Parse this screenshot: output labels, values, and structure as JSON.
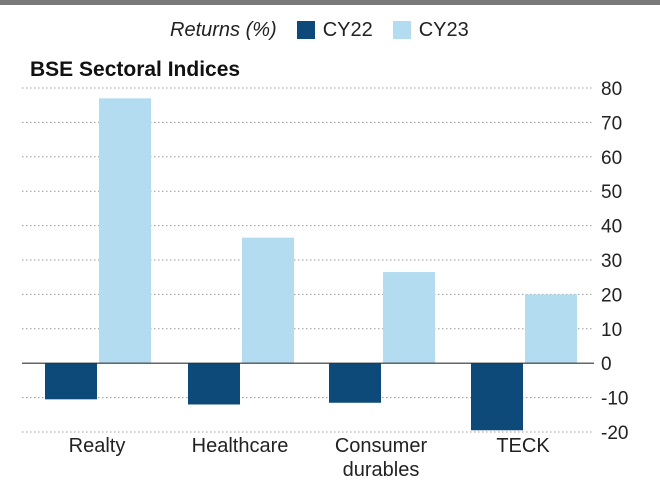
{
  "chart_data": {
    "type": "bar",
    "title": "BSE Sectoral Indices",
    "legend_title": "Returns (%)",
    "legend_placement": "top",
    "categories": [
      {
        "lines": [
          "Realty"
        ]
      },
      {
        "lines": [
          "Healthcare"
        ]
      },
      {
        "lines": [
          "Consumer",
          "durables"
        ]
      },
      {
        "lines": [
          "TECK"
        ]
      }
    ],
    "series": [
      {
        "name": "CY22",
        "color": "#0d4a7a",
        "values": [
          -10.5,
          -12,
          -11.5,
          -19.5
        ]
      },
      {
        "name": "CY23",
        "color": "#b3dcf1",
        "values": [
          77,
          36.5,
          26.5,
          20
        ]
      }
    ],
    "ylim": [
      -20,
      80
    ],
    "yticks": [
      80,
      70,
      60,
      50,
      40,
      30,
      20,
      10,
      0,
      -10,
      -20
    ],
    "ytick_labels": [
      "80",
      "70",
      "60",
      "50",
      "40",
      "30",
      "20",
      "10",
      "0",
      "-10",
      "-20"
    ],
    "grid": true,
    "xlabel": "",
    "ylabel": ""
  }
}
